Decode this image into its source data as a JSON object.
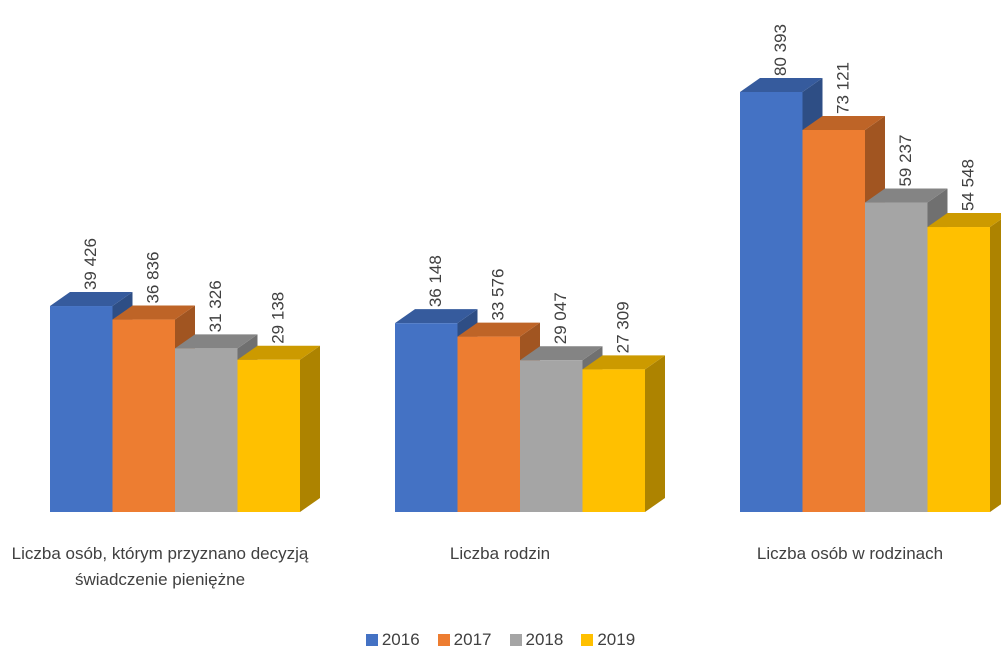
{
  "chart_data": {
    "type": "bar3d",
    "categories": [
      "Liczba osób, którym przyznano decyzją świadczenie pieniężne",
      "Liczba rodzin",
      "Liczba osób w rodzinach"
    ],
    "series": [
      {
        "name": "2016",
        "color": "#4472c4",
        "values": [
          39426,
          36148,
          80393
        ],
        "value_labels": [
          "39 426",
          "36 148",
          "80 393"
        ]
      },
      {
        "name": "2017",
        "color": "#ed7d31",
        "values": [
          36836,
          33576,
          73121
        ],
        "value_labels": [
          "36 836",
          "33 576",
          "73 121"
        ]
      },
      {
        "name": "2018",
        "color": "#a5a5a5",
        "values": [
          31326,
          29047,
          59237
        ],
        "value_labels": [
          "31 326",
          "29 047",
          "59 237"
        ]
      },
      {
        "name": "2019",
        "color": "#ffc000",
        "values": [
          29138,
          27309,
          54548
        ],
        "value_labels": [
          "29 138",
          "27 309",
          "54 548"
        ]
      }
    ],
    "legend": "bottom"
  }
}
